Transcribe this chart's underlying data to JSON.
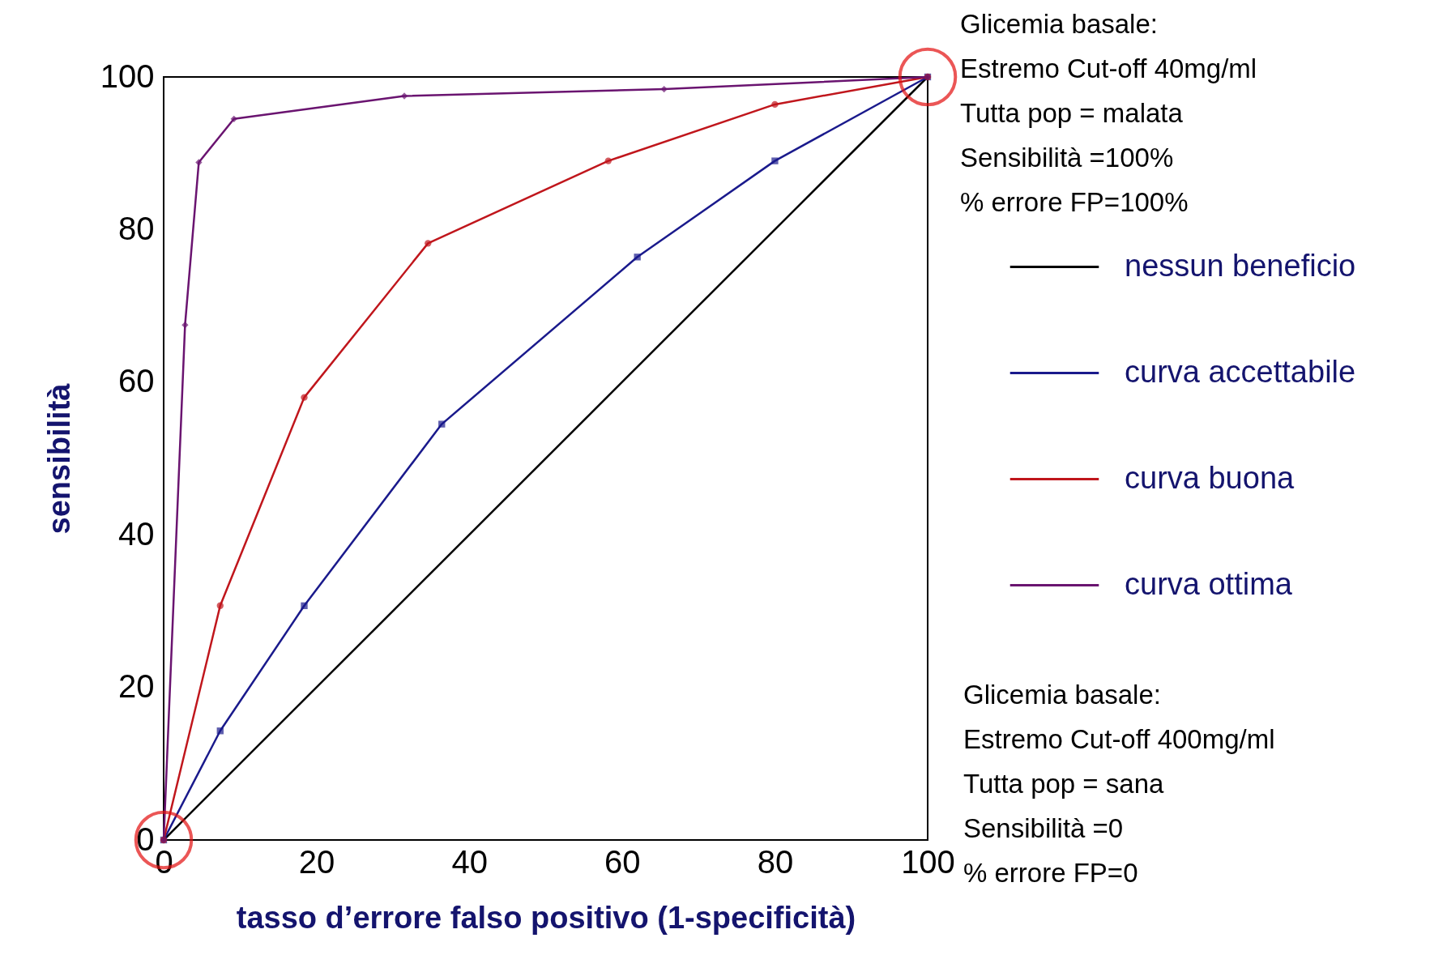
{
  "chart_data": {
    "type": "line",
    "xlabel": "tasso d’errore falso positivo (1-specificità)",
    "ylabel": "sensibilità",
    "xlim": [
      0,
      100
    ],
    "ylim": [
      0,
      100
    ],
    "xticks": [
      0,
      20,
      40,
      60,
      80,
      100
    ],
    "yticks": [
      0,
      20,
      40,
      60,
      80,
      100
    ],
    "grid": false,
    "legend": "right",
    "series": [
      {
        "name": "nessun beneficio",
        "color": "#000000",
        "marker": "none",
        "x": [
          0,
          100
        ],
        "values": [
          0,
          100
        ]
      },
      {
        "name": "curva accettabile",
        "color": "#1a1a8c",
        "marker": "square",
        "x": [
          0,
          7.4,
          18.4,
          36.4,
          62,
          80,
          100
        ],
        "values": [
          0,
          14.3,
          30.7,
          54.5,
          76.4,
          89,
          100
        ]
      },
      {
        "name": "curva buona",
        "color": "#c0161c",
        "marker": "circle",
        "x": [
          0,
          7.4,
          18.4,
          34.6,
          58.2,
          80,
          100
        ],
        "values": [
          0,
          30.7,
          58,
          78.2,
          89,
          96.4,
          100
        ]
      },
      {
        "name": "curva ottima",
        "color": "#6a1470",
        "marker": "diamond",
        "x": [
          0,
          2.8,
          4.6,
          9.2,
          31.5,
          65.5,
          100
        ],
        "values": [
          0,
          67.5,
          88.8,
          94.5,
          97.5,
          98.4,
          100
        ]
      },
      {
        "type": "scatter",
        "color": "#e31010",
        "marker": "circle",
        "x": [
          0,
          100
        ],
        "values": [
          0,
          100
        ]
      }
    ],
    "annotations": [
      "Glicemia basale:\nEstremo Cut-off 40mg/ml\nTutta pop = malata\nSensibilità =100%\n% errore FP=100%",
      "Glicemia basale:\nEstremo Cut-off 400mg/ml\nTutta pop = sana\nSensibilità =0\n% errore FP=0"
    ]
  }
}
